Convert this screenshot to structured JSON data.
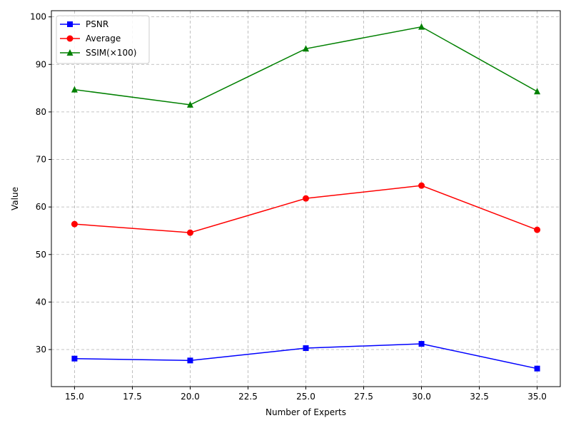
{
  "chart_data": {
    "type": "line",
    "title": "",
    "xlabel": "Number of Experts",
    "ylabel": "Value",
    "x": [
      15,
      20,
      25,
      30,
      35
    ],
    "xlim": [
      14.0,
      36.0
    ],
    "ylim": [
      22.2,
      101.3
    ],
    "xticks": [
      "15.0",
      "17.5",
      "20.0",
      "22.5",
      "25.0",
      "27.5",
      "30.0",
      "32.5",
      "35.0"
    ],
    "yticks": [
      "30",
      "40",
      "50",
      "60",
      "70",
      "80",
      "90",
      "100"
    ],
    "grid": true,
    "legend_position": "top-left",
    "series": [
      {
        "name": "PSNR",
        "color": "#0000ff",
        "marker": "square",
        "values": [
          28.1,
          27.7,
          30.3,
          31.2,
          26.0
        ]
      },
      {
        "name": "Average",
        "color": "#ff0000",
        "marker": "circle",
        "values": [
          56.4,
          54.6,
          61.8,
          64.5,
          55.2
        ]
      },
      {
        "name": "SSIM(×100)",
        "color": "#008000",
        "marker": "triangle",
        "values": [
          84.7,
          81.5,
          93.3,
          97.9,
          84.3
        ]
      }
    ]
  }
}
